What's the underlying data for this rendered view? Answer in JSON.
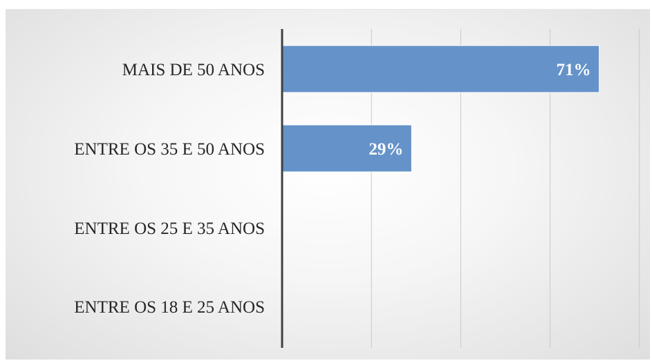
{
  "chart_data": {
    "type": "bar",
    "orientation": "horizontal",
    "categories": [
      "MAIS DE 50 ANOS",
      "ENTRE OS 35 E 50 ANOS",
      "ENTRE OS 25 E 35 ANOS",
      "ENTRE OS 18 E 25 ANOS"
    ],
    "values": [
      71,
      29,
      0,
      0
    ],
    "data_labels": [
      "71%",
      "29%",
      "",
      ""
    ],
    "unit": "%",
    "xlim": [
      0,
      80
    ],
    "x_gridlines": [
      20,
      40,
      60,
      80
    ],
    "title": "",
    "xlabel": "",
    "ylabel": "",
    "grid": true,
    "legend": "none",
    "bar_color": "#6593c9"
  }
}
